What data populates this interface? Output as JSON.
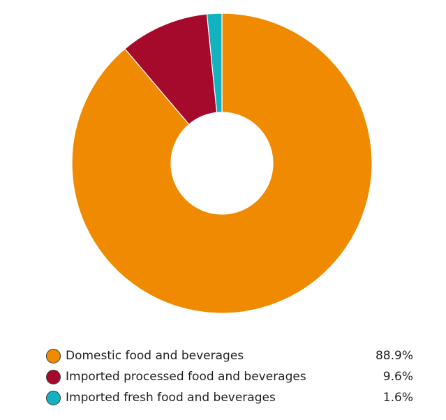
{
  "chart_data": {
    "type": "pie",
    "title": "",
    "categories": [
      "Domestic food and beverages",
      "Imported processed food and beverages",
      "Imported fresh food and beverages"
    ],
    "values": [
      88.9,
      9.6,
      1.6
    ],
    "value_labels": [
      "88.9%",
      "9.6%",
      "1.6%"
    ],
    "colors": [
      "#f08a00",
      "#a50a2d",
      "#12b2c0"
    ],
    "legend_position": "bottom",
    "donut": true
  }
}
